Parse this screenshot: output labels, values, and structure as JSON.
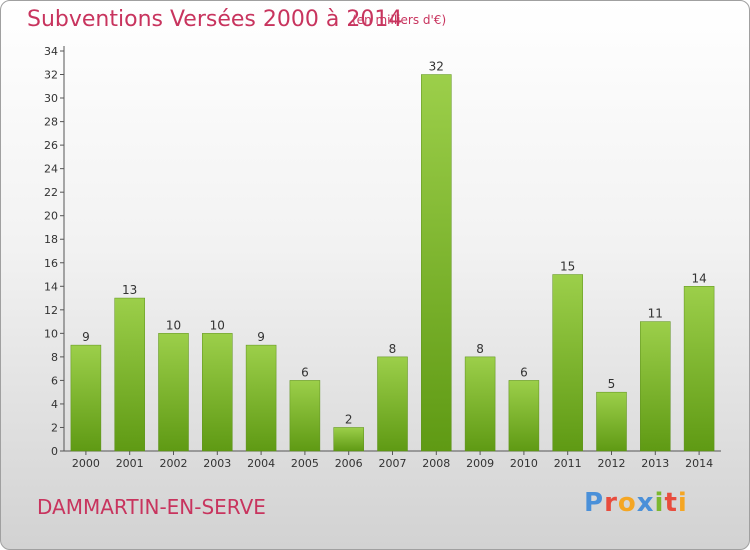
{
  "header": {
    "title": "Subventions Versées 2000 à 2014",
    "subtitle": "(en milliers d'€)"
  },
  "footer": {
    "commune": "DAMMARTIN-EN-SERVE",
    "logo_text": "Proxiti",
    "logo_colors": [
      "#4a90d9",
      "#e84c3d",
      "#f5a623",
      "#4a90d9",
      "#7cb82f",
      "#e84c3d",
      "#f5a623"
    ]
  },
  "chart_data": {
    "type": "bar",
    "title": "Subventions Versées 2000 à 2014",
    "subtitle": "(en milliers d'€)",
    "xlabel": "",
    "ylabel": "",
    "ylim": [
      0,
      34
    ],
    "yticks": [
      0,
      2,
      4,
      6,
      8,
      10,
      12,
      14,
      16,
      18,
      20,
      22,
      24,
      26,
      28,
      30,
      32,
      34
    ],
    "grid": false,
    "legend": "none",
    "bar_color_top": "#9ccf4a",
    "bar_color_bottom": "#5f9a14",
    "categories": [
      "2000",
      "2001",
      "2002",
      "2003",
      "2004",
      "2005",
      "2006",
      "2007",
      "2008",
      "2009",
      "2010",
      "2011",
      "2012",
      "2013",
      "2014"
    ],
    "values": [
      9,
      13,
      10,
      10,
      9,
      6,
      2,
      8,
      32,
      8,
      6,
      15,
      5,
      11,
      14
    ]
  }
}
